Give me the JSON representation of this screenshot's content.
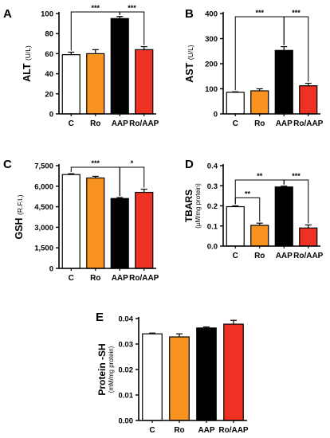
{
  "chart_data": [
    {
      "panel": "A",
      "type": "bar",
      "categories": [
        "C",
        "Ro",
        "AAP",
        "Ro/AAP"
      ],
      "values": [
        59,
        60,
        95,
        64
      ],
      "errors": [
        2.5,
        4,
        2,
        3
      ],
      "ylabel_main": "ALT",
      "ylabel_unit": "(U/L)",
      "ylim": [
        0,
        100
      ],
      "yticks": [
        0,
        20,
        40,
        60,
        80,
        100
      ],
      "ytick_labels": [
        "0",
        "20",
        "40",
        "60",
        "80",
        "100"
      ],
      "significance": [
        {
          "from": 0,
          "to": 2,
          "label": "***"
        },
        {
          "from": 2,
          "to": 3,
          "label": "***"
        }
      ]
    },
    {
      "panel": "B",
      "type": "bar",
      "categories": [
        "C",
        "Ro",
        "AAP",
        "Ro/AAP"
      ],
      "values": [
        86,
        92,
        253,
        112
      ],
      "errors": [
        2,
        8,
        15,
        10
      ],
      "ylabel_main": "AST",
      "ylabel_unit": "(U/L)",
      "ylim": [
        0,
        400
      ],
      "yticks": [
        0,
        100,
        200,
        300,
        400
      ],
      "ytick_labels": [
        "0",
        "100",
        "200",
        "300",
        "400"
      ],
      "significance": [
        {
          "from": 0,
          "to": 2,
          "label": "***"
        },
        {
          "from": 2,
          "to": 3,
          "label": "***"
        }
      ]
    },
    {
      "panel": "C",
      "type": "bar",
      "categories": [
        "C",
        "Ro",
        "AAP",
        "Ro/AAP"
      ],
      "values": [
        6850,
        6600,
        5100,
        5550
      ],
      "errors": [
        60,
        120,
        70,
        230
      ],
      "ylabel_main": "GSH",
      "ylabel_unit": "(R.F.I.)",
      "ylim": [
        0,
        7500
      ],
      "yticks": [
        0,
        1500,
        3000,
        4500,
        6000,
        7500
      ],
      "ytick_labels": [
        "0",
        "1,500",
        "3,000",
        "4,500",
        "6,000",
        "7,500"
      ],
      "significance": [
        {
          "from": 0,
          "to": 2,
          "label": "***"
        },
        {
          "from": 2,
          "to": 3,
          "label": "*"
        }
      ]
    },
    {
      "panel": "D",
      "type": "bar",
      "categories": [
        "C",
        "Ro",
        "AAP",
        "Ro/AAP"
      ],
      "values": [
        0.196,
        0.103,
        0.294,
        0.09
      ],
      "errors": [
        0.004,
        0.011,
        0.004,
        0.015
      ],
      "ylabel_main": "TBARS",
      "ylabel_unit": "(µM/mg protein)",
      "ylim": [
        0,
        0.4
      ],
      "yticks": [
        0,
        0.1,
        0.2,
        0.3,
        0.4
      ],
      "ytick_labels": [
        "0.0",
        "0.1",
        "0.2",
        "0.3",
        "0.4"
      ],
      "significance": [
        {
          "from": 0,
          "to": 1,
          "label": "**"
        },
        {
          "from": 0,
          "to": 2,
          "label": "**"
        },
        {
          "from": 2,
          "to": 3,
          "label": "***"
        }
      ]
    },
    {
      "panel": "E",
      "type": "bar",
      "categories": [
        "C",
        "Ro",
        "AAP",
        "Ro/AAP"
      ],
      "values": [
        0.034,
        0.0328,
        0.0363,
        0.0378
      ],
      "errors": [
        0.0003,
        0.0012,
        0.0004,
        0.0015
      ],
      "ylabel_main": "Protein -SH",
      "ylabel_unit": "(mM/mg protein)",
      "ylim": [
        0,
        0.04
      ],
      "yticks": [
        0,
        0.01,
        0.02,
        0.03,
        0.04
      ],
      "ytick_labels": [
        "0.00",
        "0.01",
        "0.02",
        "0.03",
        "0.04"
      ],
      "significance": []
    }
  ],
  "colors": {
    "C": "#ffffff",
    "Ro": "#f7931e",
    "AAP": "#000000",
    "Ro/AAP": "#ef3124",
    "axis": "#000000"
  }
}
